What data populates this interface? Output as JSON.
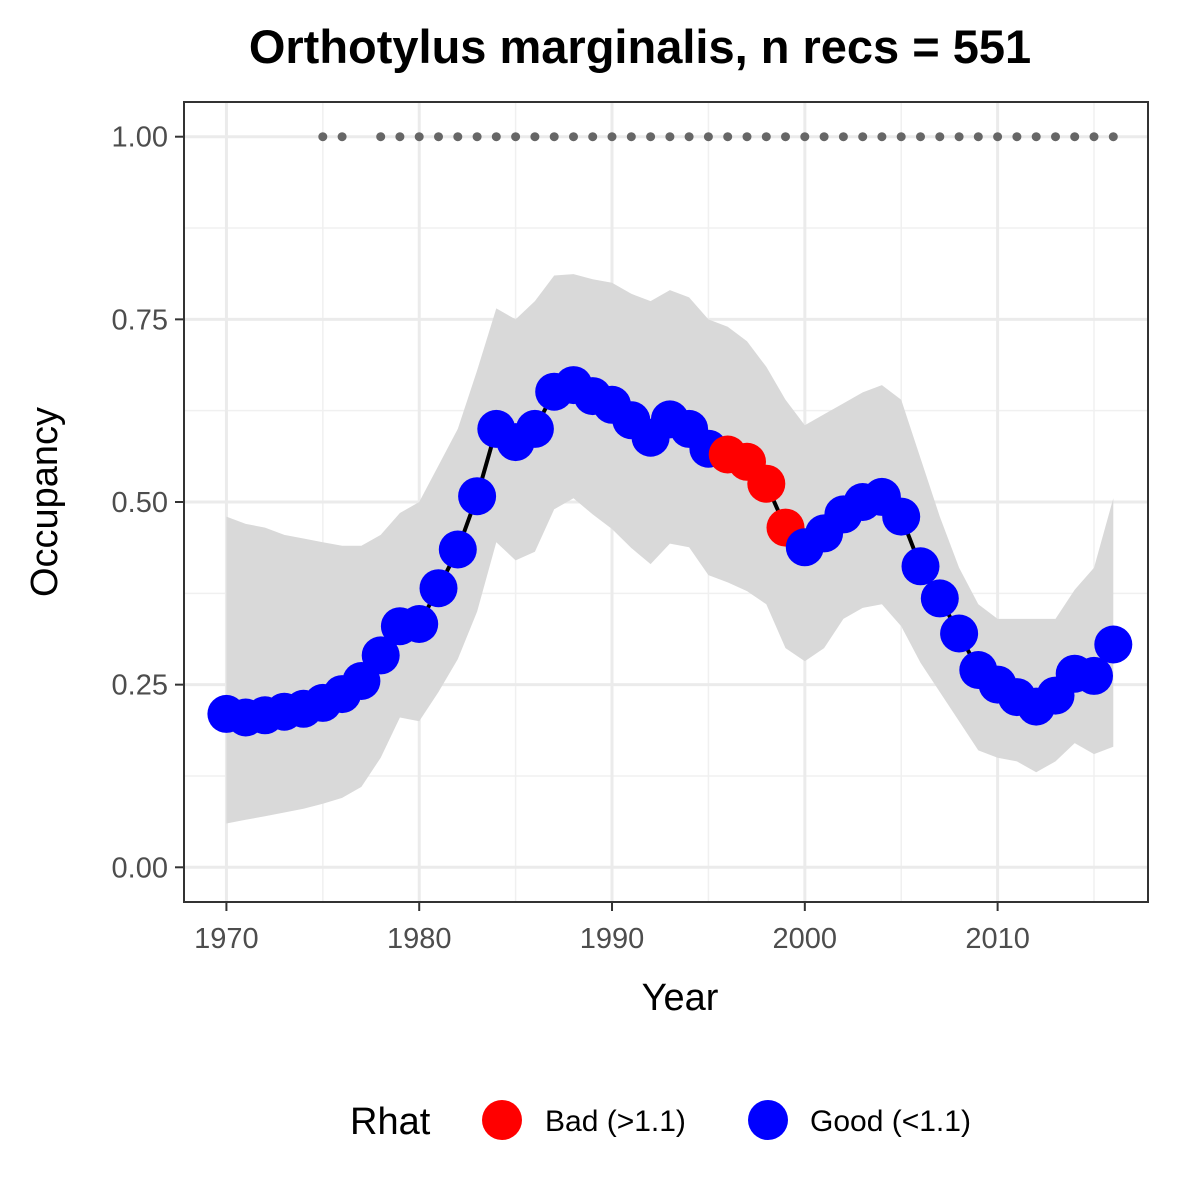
{
  "chart_data": {
    "type": "line",
    "title": "Orthotylus marginalis, n recs = 551",
    "xlabel": "Year",
    "ylabel": "Occupancy",
    "xlim": [
      1967.8,
      2017.8
    ],
    "ylim": [
      -0.0475,
      1.0475
    ],
    "x_ticks": [
      1970,
      1980,
      1990,
      2000,
      2010
    ],
    "x_tick_labels": [
      "1970",
      "1980",
      "1990",
      "2000",
      "2010"
    ],
    "y_ticks": [
      0,
      0.25,
      0.5,
      0.75,
      1
    ],
    "y_tick_labels": [
      "0.00",
      "0.25",
      "0.50",
      "0.75",
      "1.00"
    ],
    "grid": true,
    "legend": {
      "title": "Rhat",
      "placement": "bottom",
      "entries": [
        {
          "label": "Bad (>1.1)",
          "color": "#ff0000"
        },
        {
          "label": "Good (<1.1)",
          "color": "#0000ff"
        }
      ]
    },
    "colors": {
      "bad": "#ff0000",
      "good": "#0000ff",
      "ribbon": "#d9d9d9",
      "line": "#000000",
      "record_dots": "#666666"
    },
    "x": [
      1970,
      1971,
      1972,
      1973,
      1974,
      1975,
      1976,
      1977,
      1978,
      1979,
      1980,
      1981,
      1982,
      1983,
      1984,
      1985,
      1986,
      1987,
      1988,
      1989,
      1990,
      1991,
      1992,
      1993,
      1994,
      1995,
      1996,
      1997,
      1998,
      1999,
      2000,
      2001,
      2002,
      2003,
      2004,
      2005,
      2006,
      2007,
      2008,
      2009,
      2010,
      2011,
      2012,
      2013,
      2014,
      2015,
      2016
    ],
    "occupancy": [
      0.21,
      0.205,
      0.208,
      0.213,
      0.217,
      0.225,
      0.237,
      0.255,
      0.29,
      0.33,
      0.333,
      0.382,
      0.435,
      0.508,
      0.6,
      0.582,
      0.6,
      0.651,
      0.66,
      0.645,
      0.633,
      0.612,
      0.588,
      0.613,
      0.6,
      0.573,
      0.565,
      0.555,
      0.525,
      0.465,
      0.438,
      0.457,
      0.483,
      0.5,
      0.507,
      0.48,
      0.412,
      0.368,
      0.32,
      0.27,
      0.25,
      0.233,
      0.22,
      0.235,
      0.265,
      0.262,
      0.305
    ],
    "lower": [
      0.06,
      0.065,
      0.07,
      0.075,
      0.08,
      0.087,
      0.095,
      0.11,
      0.15,
      0.205,
      0.2,
      0.24,
      0.285,
      0.35,
      0.445,
      0.42,
      0.432,
      0.49,
      0.505,
      0.483,
      0.463,
      0.437,
      0.415,
      0.443,
      0.438,
      0.4,
      0.39,
      0.378,
      0.36,
      0.3,
      0.282,
      0.3,
      0.34,
      0.355,
      0.36,
      0.33,
      0.28,
      0.24,
      0.2,
      0.16,
      0.15,
      0.145,
      0.13,
      0.145,
      0.17,
      0.155,
      0.165
    ],
    "upper": [
      0.48,
      0.47,
      0.465,
      0.455,
      0.45,
      0.445,
      0.44,
      0.44,
      0.455,
      0.485,
      0.5,
      0.55,
      0.6,
      0.68,
      0.765,
      0.75,
      0.775,
      0.81,
      0.812,
      0.805,
      0.8,
      0.785,
      0.775,
      0.79,
      0.78,
      0.75,
      0.74,
      0.72,
      0.685,
      0.64,
      0.605,
      0.62,
      0.635,
      0.65,
      0.66,
      0.64,
      0.56,
      0.48,
      0.41,
      0.36,
      0.34,
      0.34,
      0.34,
      0.34,
      0.38,
      0.41,
      0.505
    ],
    "rhat": [
      "Good",
      "Good",
      "Good",
      "Good",
      "Good",
      "Good",
      "Good",
      "Good",
      "Good",
      "Good",
      "Good",
      "Good",
      "Good",
      "Good",
      "Good",
      "Good",
      "Good",
      "Good",
      "Good",
      "Good",
      "Good",
      "Good",
      "Good",
      "Good",
      "Good",
      "Good",
      "Bad",
      "Bad",
      "Bad",
      "Bad",
      "Good",
      "Good",
      "Good",
      "Good",
      "Good",
      "Good",
      "Good",
      "Good",
      "Good",
      "Good",
      "Good",
      "Good",
      "Good",
      "Good",
      "Good",
      "Good",
      "Good"
    ],
    "record_years": [
      1975,
      1976,
      1978,
      1979,
      1980,
      1981,
      1982,
      1983,
      1984,
      1985,
      1986,
      1987,
      1988,
      1989,
      1990,
      1991,
      1992,
      1993,
      1994,
      1995,
      1996,
      1997,
      1998,
      1999,
      2000,
      2001,
      2002,
      2003,
      2004,
      2005,
      2006,
      2007,
      2008,
      2009,
      2010,
      2011,
      2012,
      2013,
      2014,
      2015,
      2016
    ],
    "record_y": 1.0
  }
}
